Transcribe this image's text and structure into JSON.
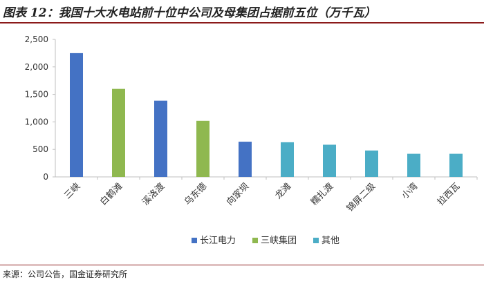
{
  "title": "图表 12：我国十大水电站前十位中公司及母集团占据前五位（万千瓦）",
  "source": "来源：公司公告，国金证券研究所",
  "colors": {
    "长江电力": "#4472c4",
    "三峡集团": "#8fb84f",
    "其他": "#4badc6"
  },
  "chart_data": {
    "type": "bar",
    "categories": [
      "三峡",
      "白鹤滩",
      "溪洛渡",
      "乌东德",
      "向家坝",
      "龙滩",
      "糯扎渡",
      "锦屏二级",
      "小湾",
      "拉西瓦"
    ],
    "values": [
      2250,
      1600,
      1386,
      1020,
      640,
      630,
      585,
      480,
      420,
      420
    ],
    "groups": [
      "长江电力",
      "三峡集团",
      "长江电力",
      "三峡集团",
      "长江电力",
      "其他",
      "其他",
      "其他",
      "其他",
      "其他"
    ],
    "legend": [
      "长江电力",
      "三峡集团",
      "其他"
    ],
    "legend_position": "bottom",
    "yticks": [
      "0",
      "500",
      "1,000",
      "1,500",
      "2,000",
      "2,500"
    ],
    "ylim": [
      0,
      2500
    ],
    "title": "",
    "xlabel": "",
    "ylabel": "",
    "grid": false
  }
}
